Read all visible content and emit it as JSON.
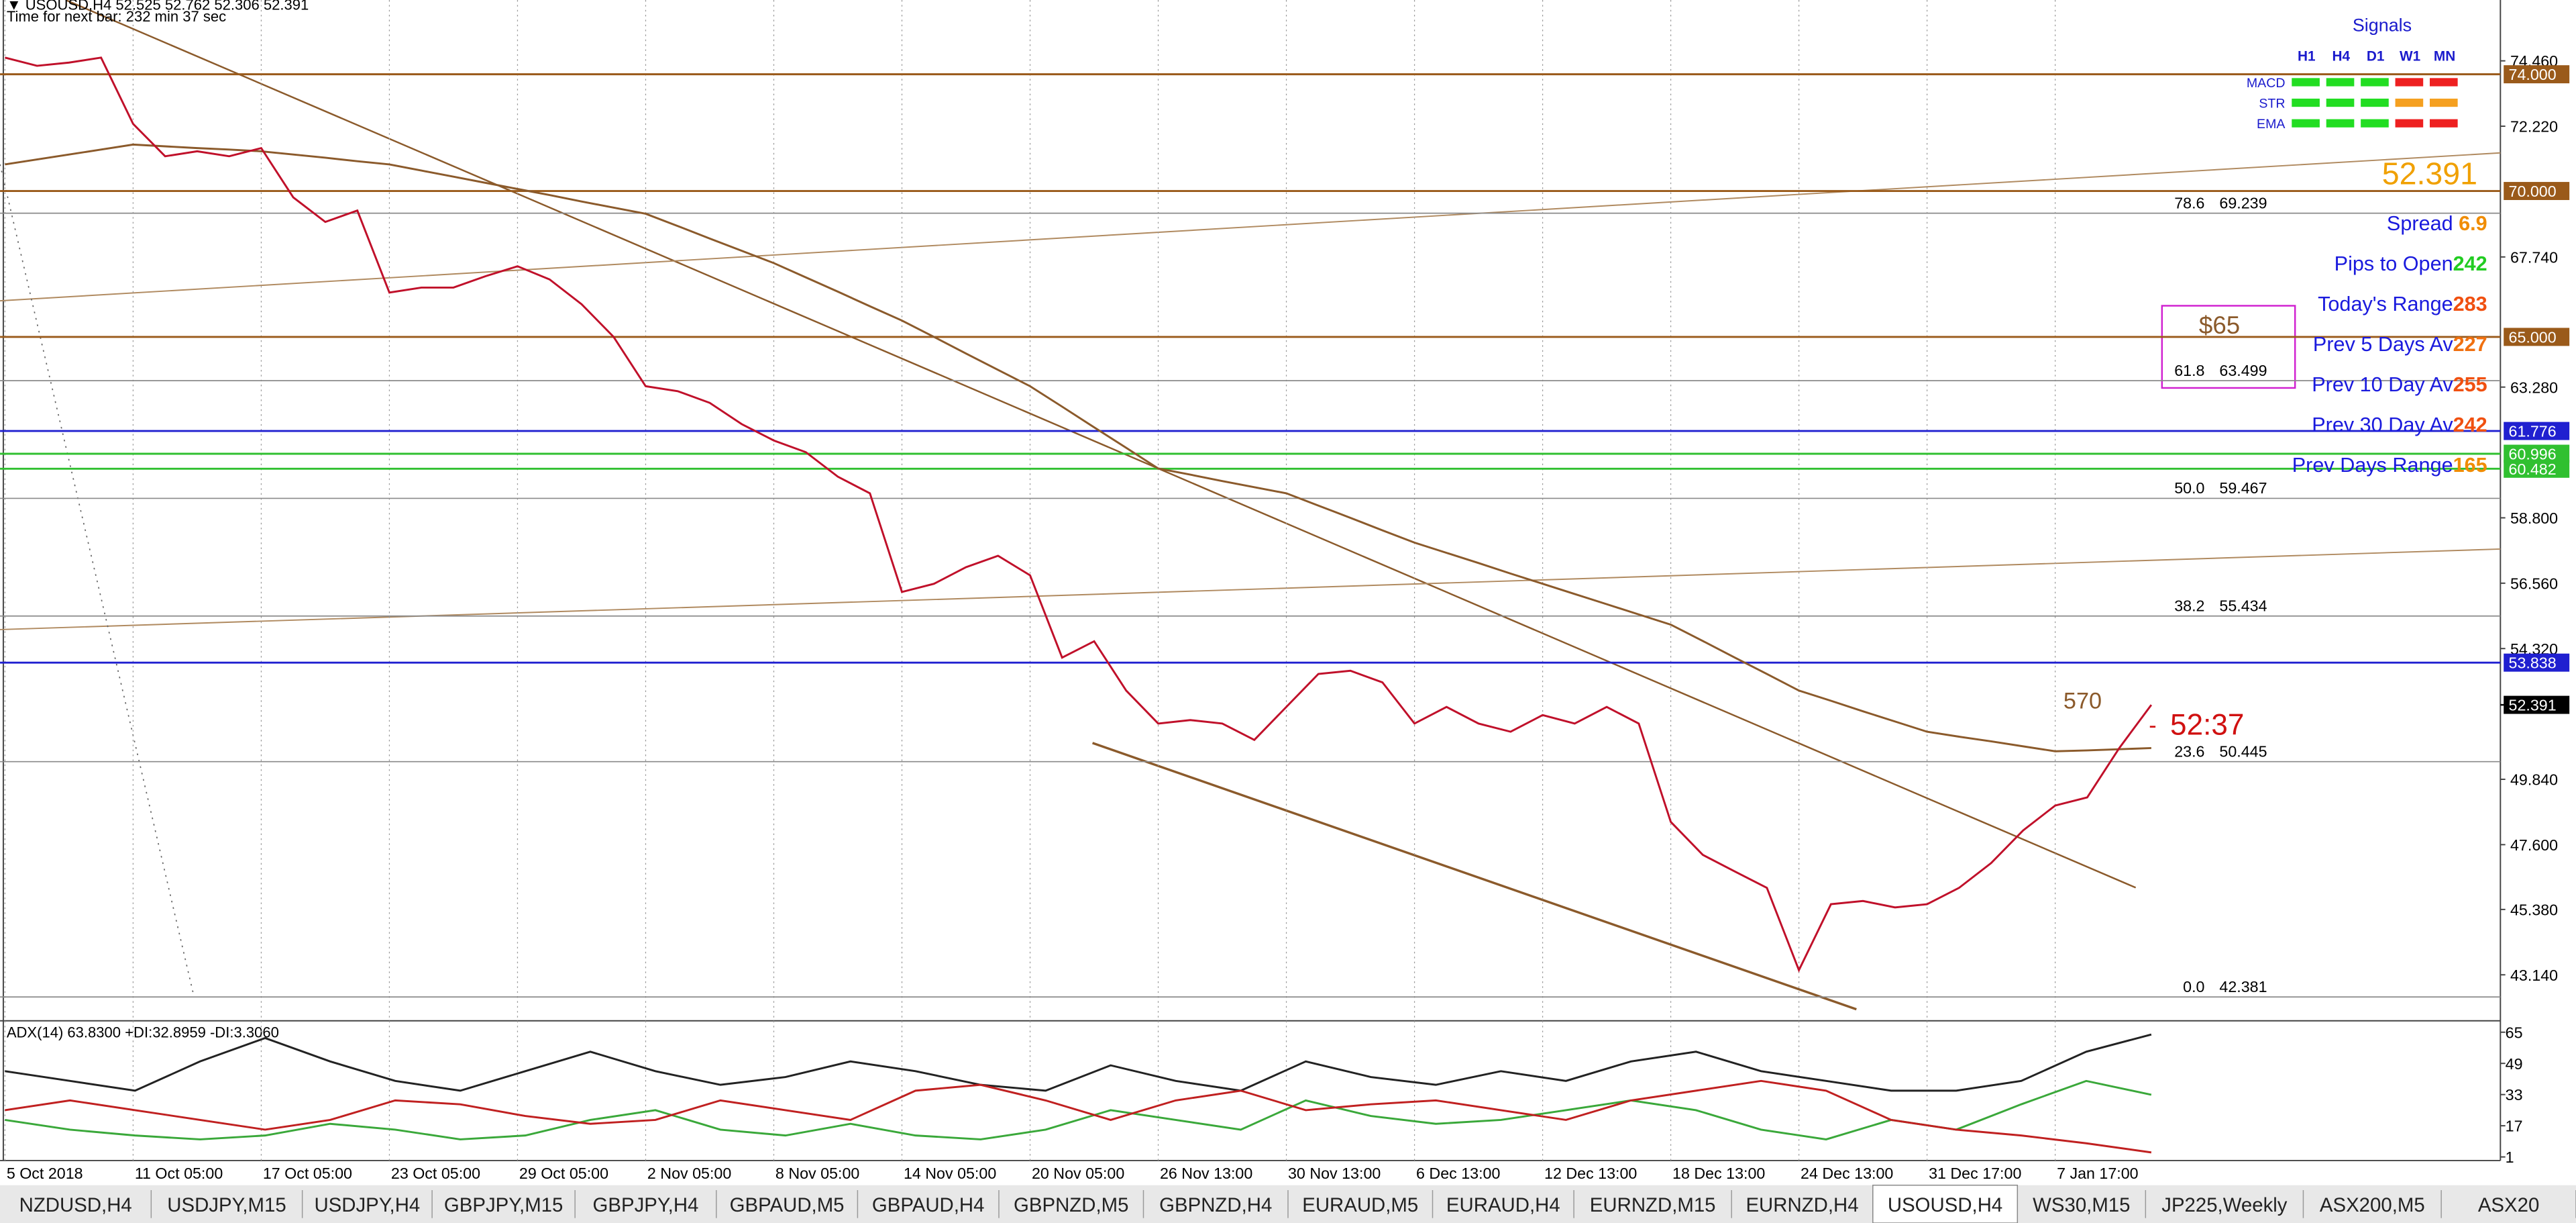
{
  "header": {
    "symbol_line": "▼ USOUSD,H4  52.525 52.762 52.306 52.391",
    "timer": "Time for next bar: 232 min 37 sec"
  },
  "chart_data": [
    {
      "type": "line",
      "grid": true,
      "categories": [
        "5 Oct 2018",
        null,
        null,
        null,
        "11 Oct 05:00",
        null,
        null,
        null,
        "17 Oct 05:00",
        null,
        null,
        null,
        "23 Oct 05:00",
        null,
        null,
        null,
        "29 Oct 05:00",
        null,
        null,
        null,
        "2 Nov 05:00",
        null,
        null,
        null,
        "8 Nov 05:00",
        null,
        null,
        null,
        "14 Nov 05:00",
        null,
        null,
        null,
        "20 Nov 05:00",
        null,
        null,
        null,
        "26 Nov 13:00",
        null,
        null,
        null,
        "30 Nov 13:00",
        null,
        null,
        null,
        "6 Dec 13:00",
        null,
        null,
        null,
        "12 Dec 13:00",
        null,
        null,
        null,
        "18 Dec 13:00",
        null,
        null,
        null,
        "24 Dec 13:00",
        null,
        null,
        null,
        "31 Dec 17:00",
        null,
        null,
        null,
        "7 Jan 17:00",
        null,
        null,
        null
      ],
      "series": [
        {
          "color": "#8b5a2b",
          "values": [
            70.91,
            71.08,
            71.25,
            71.42,
            71.59,
            71.53,
            71.47,
            71.42,
            71.36,
            71.25,
            71.14,
            71.02,
            70.91,
            70.7,
            70.49,
            70.28,
            70.07,
            69.86,
            69.64,
            69.43,
            69.22,
            68.8,
            68.37,
            67.95,
            67.53,
            67.04,
            66.55,
            66.05,
            65.56,
            65.0,
            64.43,
            63.87,
            63.31,
            62.61,
            61.9,
            61.2,
            60.49,
            60.28,
            60.06,
            59.85,
            59.64,
            59.22,
            58.8,
            58.37,
            57.95,
            57.6,
            57.25,
            56.89,
            56.54,
            56.19,
            55.84,
            55.49,
            55.14,
            54.58,
            54.01,
            53.45,
            52.88,
            52.53,
            52.17,
            51.82,
            51.47,
            51.3,
            51.14,
            50.97,
            50.8,
            50.83,
            50.87,
            50.91
          ]
        },
        {
          "color": "#c0102a",
          "values": [
            74.57,
            74.29,
            74.4,
            74.57,
            72.3,
            71.19,
            71.36,
            71.19,
            71.47,
            69.78,
            68.94,
            69.33,
            66.52,
            66.69,
            66.69,
            67.08,
            67.42,
            66.97,
            66.12,
            65.0,
            63.31,
            63.14,
            62.74,
            62.01,
            61.45,
            61.05,
            60.21,
            59.64,
            56.26,
            56.54,
            57.11,
            57.5,
            56.83,
            54.01,
            54.57,
            52.88,
            51.75,
            51.87,
            51.75,
            51.19,
            52.32,
            53.45,
            53.56,
            53.16,
            51.75,
            52.32,
            51.75,
            51.47,
            52.04,
            51.75,
            52.32,
            51.75,
            48.38,
            47.25,
            46.68,
            46.12,
            43.3,
            45.56,
            45.67,
            45.45,
            45.56,
            46.12,
            46.97,
            48.09,
            48.94,
            49.22,
            50.91,
            52.391
          ]
        }
      ],
      "ylim": [
        41.62,
        76.545
      ],
      "yticks": [
        {
          "value": 74.46,
          "label": "74.460"
        },
        {
          "value": 72.22,
          "label": "72.220"
        },
        {
          "value": 67.74,
          "label": "67.740"
        },
        {
          "value": 63.28,
          "label": "63.280"
        },
        {
          "value": 58.8,
          "label": "58.800"
        },
        {
          "value": 56.56,
          "label": "56.560"
        },
        {
          "value": 54.32,
          "label": "54.320"
        },
        {
          "value": 49.84,
          "label": "49.840"
        },
        {
          "value": 47.6,
          "label": "47.600"
        },
        {
          "value": 45.38,
          "label": "45.380"
        },
        {
          "value": 43.14,
          "label": "43.140"
        }
      ],
      "levels": [
        {
          "value": 74,
          "label": "74.000",
          "color": "#9a5a1a"
        },
        {
          "value": 70,
          "label": "70.000",
          "color": "#9a5a1a"
        },
        {
          "value": 65,
          "label": "65.000",
          "color": "#9a5a1a"
        },
        {
          "value": 61.776,
          "label": "61.776",
          "color": "#2020d0"
        },
        {
          "value": 60.996,
          "label": "60.996",
          "color": "#30c030"
        },
        {
          "value": 60.482,
          "label": "60.482",
          "color": "#30c030"
        },
        {
          "value": 53.838,
          "label": "53.838",
          "color": "#2020d0"
        },
        {
          "value": 52.391,
          "label": "52.391",
          "color": "#000000"
        }
      ],
      "fib_levels": [
        {
          "ratio": "78.6",
          "price": 69.239
        },
        {
          "ratio": "61.8",
          "price": 63.499
        },
        {
          "ratio": "50.0",
          "price": 59.467
        },
        {
          "ratio": "38.2",
          "price": 55.434
        },
        {
          "ratio": "23.6",
          "price": 50.445
        },
        {
          "ratio": "0.0",
          "price": 42.381
        }
      ],
      "annotations": {
        "count": "570",
        "countdown": "52:37",
        "target": "$65"
      }
    },
    {
      "type": "line",
      "title": "ADX(14) 63.8300 +DI:32.8959 -DI:3.3060",
      "ylim": [
        0,
        70
      ],
      "yticks": [
        1,
        17,
        33,
        49,
        65
      ],
      "series": [
        {
          "color": "#222222",
          "values": [
            45,
            40,
            35,
            50,
            62,
            50,
            40,
            35,
            45,
            55,
            45,
            38,
            42,
            50,
            45,
            38,
            35,
            48,
            40,
            35,
            50,
            42,
            38,
            45,
            40,
            50,
            55,
            45,
            40,
            35,
            35,
            40,
            55,
            63.83
          ]
        },
        {
          "color": "#3aa83a",
          "values": [
            20,
            15,
            12,
            10,
            12,
            18,
            15,
            10,
            12,
            20,
            25,
            15,
            12,
            18,
            12,
            10,
            15,
            25,
            20,
            15,
            30,
            22,
            18,
            20,
            25,
            30,
            25,
            15,
            10,
            20,
            15,
            28,
            40,
            32.8959
          ]
        },
        {
          "color": "#c02020",
          "values": [
            25,
            30,
            25,
            20,
            15,
            20,
            30,
            28,
            22,
            18,
            20,
            30,
            25,
            20,
            35,
            38,
            30,
            20,
            30,
            35,
            25,
            28,
            30,
            25,
            20,
            30,
            35,
            40,
            35,
            20,
            15,
            12,
            8,
            3.306
          ]
        }
      ]
    }
  ],
  "signals": {
    "title": "Signals",
    "columns": [
      "H1",
      "H4",
      "D1",
      "W1",
      "MN"
    ],
    "rows": [
      {
        "name": "MACD",
        "colors": [
          "#22dd22",
          "#22dd22",
          "#22dd22",
          "#ee2020",
          "#ee2020"
        ]
      },
      {
        "name": "STR",
        "colors": [
          "#22dd22",
          "#22dd22",
          "#22dd22",
          "#f5a020",
          "#f5a020"
        ]
      },
      {
        "name": "EMA",
        "colors": [
          "#22dd22",
          "#22dd22",
          "#22dd22",
          "#ee2020",
          "#ee2020"
        ]
      }
    ]
  },
  "info": {
    "price": "52.391",
    "rows": [
      {
        "label": "Spread ",
        "value": 6.9,
        "color": "#f08c00"
      },
      {
        "label": "Pips to Open",
        "value": 242,
        "color": "#22cc22"
      },
      {
        "label": "Today's Range",
        "value": 283,
        "color": "#f05010"
      },
      {
        "label": "Prev 5 Days Av",
        "value": 227,
        "color": "#f07010"
      },
      {
        "label": "Prev 10 Day Av",
        "value": 255,
        "color": "#f05010"
      },
      {
        "label": "Prev 30 Day Av",
        "value": 242,
        "color": "#f05010"
      },
      {
        "label": "Prev Days Range",
        "value": 165,
        "color": "#f08c00"
      }
    ]
  },
  "tabs": [
    "NZDUSD,H4",
    "USDJPY,M15",
    "USDJPY,H4",
    "GBPJPY,M15",
    "GBPJPY,H4",
    "GBPAUD,M5",
    "GBPAUD,H4",
    "GBPNZD,M5",
    "GBPNZD,H4",
    "EURAUD,M5",
    "EURAUD,H4",
    "EURNZD,M15",
    "EURNZD,H4",
    "USOUSD,H4",
    "WS30,M15",
    "JP225,Weekly",
    "ASX200,M5",
    "ASX20"
  ],
  "active_tab": 13
}
